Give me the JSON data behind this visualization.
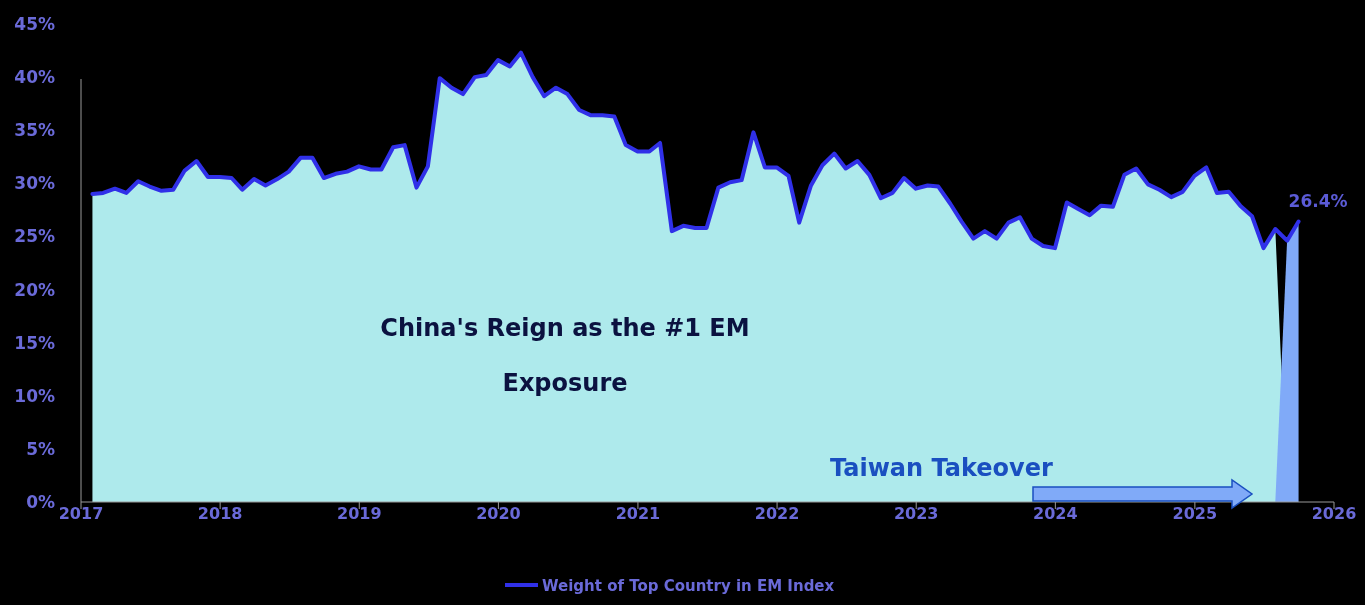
{
  "chart_data": {
    "type": "line",
    "ylim": [
      0,
      45
    ],
    "yticks": [
      {
        "value": 0,
        "label": "0%"
      },
      {
        "value": 5,
        "label": "5%"
      },
      {
        "value": 10,
        "label": "10%"
      },
      {
        "value": 15,
        "label": "15%"
      },
      {
        "value": 20,
        "label": "20%"
      },
      {
        "value": 25,
        "label": "25%"
      },
      {
        "value": 30,
        "label": "30%"
      },
      {
        "value": 35,
        "label": "35%"
      },
      {
        "value": 40,
        "label": "40%"
      },
      {
        "value": 45,
        "label": "45%"
      }
    ],
    "xlim": [
      "2017",
      "2026"
    ],
    "xticks": [
      "2017",
      "2018",
      "2019",
      "2020",
      "2021",
      "2022",
      "2023",
      "2024",
      "2025",
      "2026"
    ],
    "grid": false,
    "legend": "bottom",
    "line_style": "solid",
    "marker": "none",
    "x": [
      "2017-01-31",
      "2017-02-28",
      "2017-03-31",
      "2017-04-30",
      "2017-05-31",
      "2017-06-30",
      "2017-07-31",
      "2017-08-31",
      "2017-09-30",
      "2017-10-31",
      "2017-11-30",
      "2017-12-31",
      "2018-01-31",
      "2018-02-28",
      "2018-03-31",
      "2018-04-30",
      "2018-05-31",
      "2018-06-30",
      "2018-07-31",
      "2018-08-31",
      "2018-09-30",
      "2018-10-31",
      "2018-11-30",
      "2018-12-31",
      "2019-01-31",
      "2019-02-28",
      "2019-03-31",
      "2019-04-30",
      "2019-05-31",
      "2019-06-30",
      "2019-07-31",
      "2019-08-31",
      "2019-09-30",
      "2019-10-31",
      "2019-11-30",
      "2019-12-31",
      "2020-01-31",
      "2020-02-29",
      "2020-03-31",
      "2020-04-30",
      "2020-05-31",
      "2020-06-30",
      "2020-07-31",
      "2020-08-31",
      "2020-09-30",
      "2020-10-31",
      "2020-11-30",
      "2020-12-31",
      "2021-01-31",
      "2021-02-28",
      "2021-03-31",
      "2021-04-30",
      "2021-05-31",
      "2021-06-30",
      "2021-07-31",
      "2021-08-31",
      "2021-09-30",
      "2021-10-31",
      "2021-11-30",
      "2021-12-31",
      "2022-01-31",
      "2022-02-28",
      "2022-03-31",
      "2022-04-30",
      "2022-05-31",
      "2022-06-30",
      "2022-07-31",
      "2022-08-31",
      "2022-09-30",
      "2022-10-31",
      "2022-11-30",
      "2022-12-31",
      "2023-01-31",
      "2023-02-28",
      "2023-03-31",
      "2023-04-30",
      "2023-05-31",
      "2023-06-30",
      "2023-07-31",
      "2023-08-31",
      "2023-09-30",
      "2023-10-31",
      "2023-11-30",
      "2023-12-31",
      "2024-01-31",
      "2024-02-29",
      "2024-03-31",
      "2024-04-30",
      "2024-05-31",
      "2024-06-30",
      "2024-07-31",
      "2024-08-31",
      "2024-09-30",
      "2024-10-31",
      "2024-11-30",
      "2024-12-31",
      "2025-01-31",
      "2025-02-28",
      "2025-03-31",
      "2025-04-30",
      "2025-05-31",
      "2025-06-30",
      "2025-07-31",
      "2025-08-31",
      "2025-09-30"
    ],
    "series": [
      {
        "type": "area",
        "color": "#aeeaec",
        "values": [
          29.0,
          29.1,
          29.5,
          29.1,
          30.2,
          29.7,
          29.3,
          29.4,
          31.2,
          32.1,
          30.6,
          30.6,
          30.5,
          29.4,
          30.4,
          29.8,
          30.4,
          31.1,
          32.4,
          32.4,
          30.5,
          30.9,
          31.1,
          31.6,
          31.3,
          31.3,
          33.4,
          33.6,
          29.6,
          31.6,
          39.9,
          39.0,
          38.4,
          40.0,
          40.2,
          41.6,
          41.0,
          42.3,
          40.0,
          38.2,
          39.0,
          38.4,
          36.9,
          36.4,
          36.4,
          36.3,
          33.6,
          33.0,
          33.0,
          33.8,
          25.5,
          26.0,
          25.8,
          25.8,
          29.6,
          30.1,
          30.3,
          34.8,
          31.5,
          31.5,
          30.7,
          26.3,
          29.8,
          31.7,
          32.8,
          31.4,
          32.1,
          30.8,
          28.6,
          29.1,
          30.5,
          29.5,
          29.8,
          29.7,
          28.1,
          26.4,
          24.8,
          25.5,
          24.8,
          26.3,
          26.8,
          24.8,
          24.1,
          23.9,
          28.2,
          27.6,
          27.0,
          27.9,
          27.8,
          30.8,
          31.4,
          29.9,
          29.4,
          28.7,
          29.2,
          30.7,
          31.5,
          29.1,
          29.2,
          27.9,
          26.9,
          23.9,
          25.7,
          0,
          null
        ]
      },
      {
        "type": "area",
        "color": "#80aaf8",
        "x": [
          "2025-07-31",
          "2025-08-31",
          "2025-09-30"
        ],
        "values": [
          0,
          24.6,
          26.4
        ]
      },
      {
        "name": "Weight of Top Country in EM Index",
        "color": "#3030e8",
        "values": [
          29.0,
          29.1,
          29.5,
          29.1,
          30.2,
          29.7,
          29.3,
          29.4,
          31.2,
          32.1,
          30.6,
          30.6,
          30.5,
          29.4,
          30.4,
          29.8,
          30.4,
          31.1,
          32.4,
          32.4,
          30.5,
          30.9,
          31.1,
          31.6,
          31.3,
          31.3,
          33.4,
          33.6,
          29.6,
          31.6,
          39.9,
          39.0,
          38.4,
          40.0,
          40.2,
          41.6,
          41.0,
          42.3,
          40.0,
          38.2,
          39.0,
          38.4,
          36.9,
          36.4,
          36.4,
          36.3,
          33.6,
          33.0,
          33.0,
          33.8,
          25.5,
          26.0,
          25.8,
          25.8,
          29.6,
          30.1,
          30.3,
          34.8,
          31.5,
          31.5,
          30.7,
          26.3,
          29.8,
          31.7,
          32.8,
          31.4,
          32.1,
          30.8,
          28.6,
          29.1,
          30.5,
          29.5,
          29.8,
          29.7,
          28.1,
          26.4,
          24.8,
          25.5,
          24.8,
          26.3,
          26.8,
          24.8,
          24.1,
          23.9,
          28.2,
          27.6,
          27.0,
          27.9,
          27.8,
          30.8,
          31.4,
          29.9,
          29.4,
          28.7,
          29.2,
          30.7,
          31.5,
          29.1,
          29.2,
          27.9,
          26.9,
          23.9,
          25.7,
          24.6,
          26.4
        ]
      }
    ],
    "annotations": [
      "China's Reign as the #1 EM Exposure",
      "Taiwan Takeover",
      {
        "text": "26.4%",
        "x": "2025-09-30",
        "y": 26.4
      }
    ]
  }
}
